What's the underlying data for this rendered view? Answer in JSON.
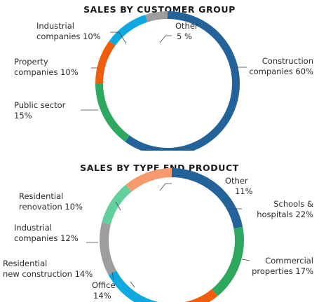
{
  "chart_data": [
    {
      "type": "pie",
      "title": "SALES BY CUSTOMER GROUP",
      "slices": [
        {
          "label_line1": "Construction",
          "label_line2": "companies 60%",
          "value": 60,
          "color": "#236399"
        },
        {
          "label_line1": "Public sector",
          "label_line2": "15%",
          "value": 15,
          "color": "#2ea85f"
        },
        {
          "label_line1": "Property",
          "label_line2": "companies 10%",
          "value": 10,
          "color": "#ef5d0e"
        },
        {
          "label_line1": "Industrial",
          "label_line2": "companies 10%",
          "value": 10,
          "color": "#0fa8e0"
        },
        {
          "label_line1": "Other",
          "label_line2": "5 %",
          "value": 5,
          "color": "#9d9d9d"
        }
      ]
    },
    {
      "type": "pie",
      "title": "SALES BY TYPE END PRODUCT",
      "slices": [
        {
          "label_line1": "Schools &",
          "label_line2": "hospitals 22%",
          "value": 22,
          "color": "#236399"
        },
        {
          "label_line1": "Commercial",
          "label_line2": "properties 17%",
          "value": 17,
          "color": "#2ea85f"
        },
        {
          "label_line1": "Office",
          "label_line2": "14%",
          "value": 14,
          "color": "#ef5d0e"
        },
        {
          "label_line1": "Residential",
          "label_line2": "new construction 14%",
          "value": 14,
          "color": "#0fa8e0"
        },
        {
          "label_line1": "Industrial",
          "label_line2": "companies 12%",
          "value": 12,
          "color": "#9d9d9d"
        },
        {
          "label_line1": "Residential",
          "label_line2": "renovation 10%",
          "value": 10,
          "color": "#62cf9c"
        },
        {
          "label_line1": "Other",
          "label_line2": "11%",
          "value": 11,
          "color": "#f59a6e"
        }
      ]
    }
  ]
}
